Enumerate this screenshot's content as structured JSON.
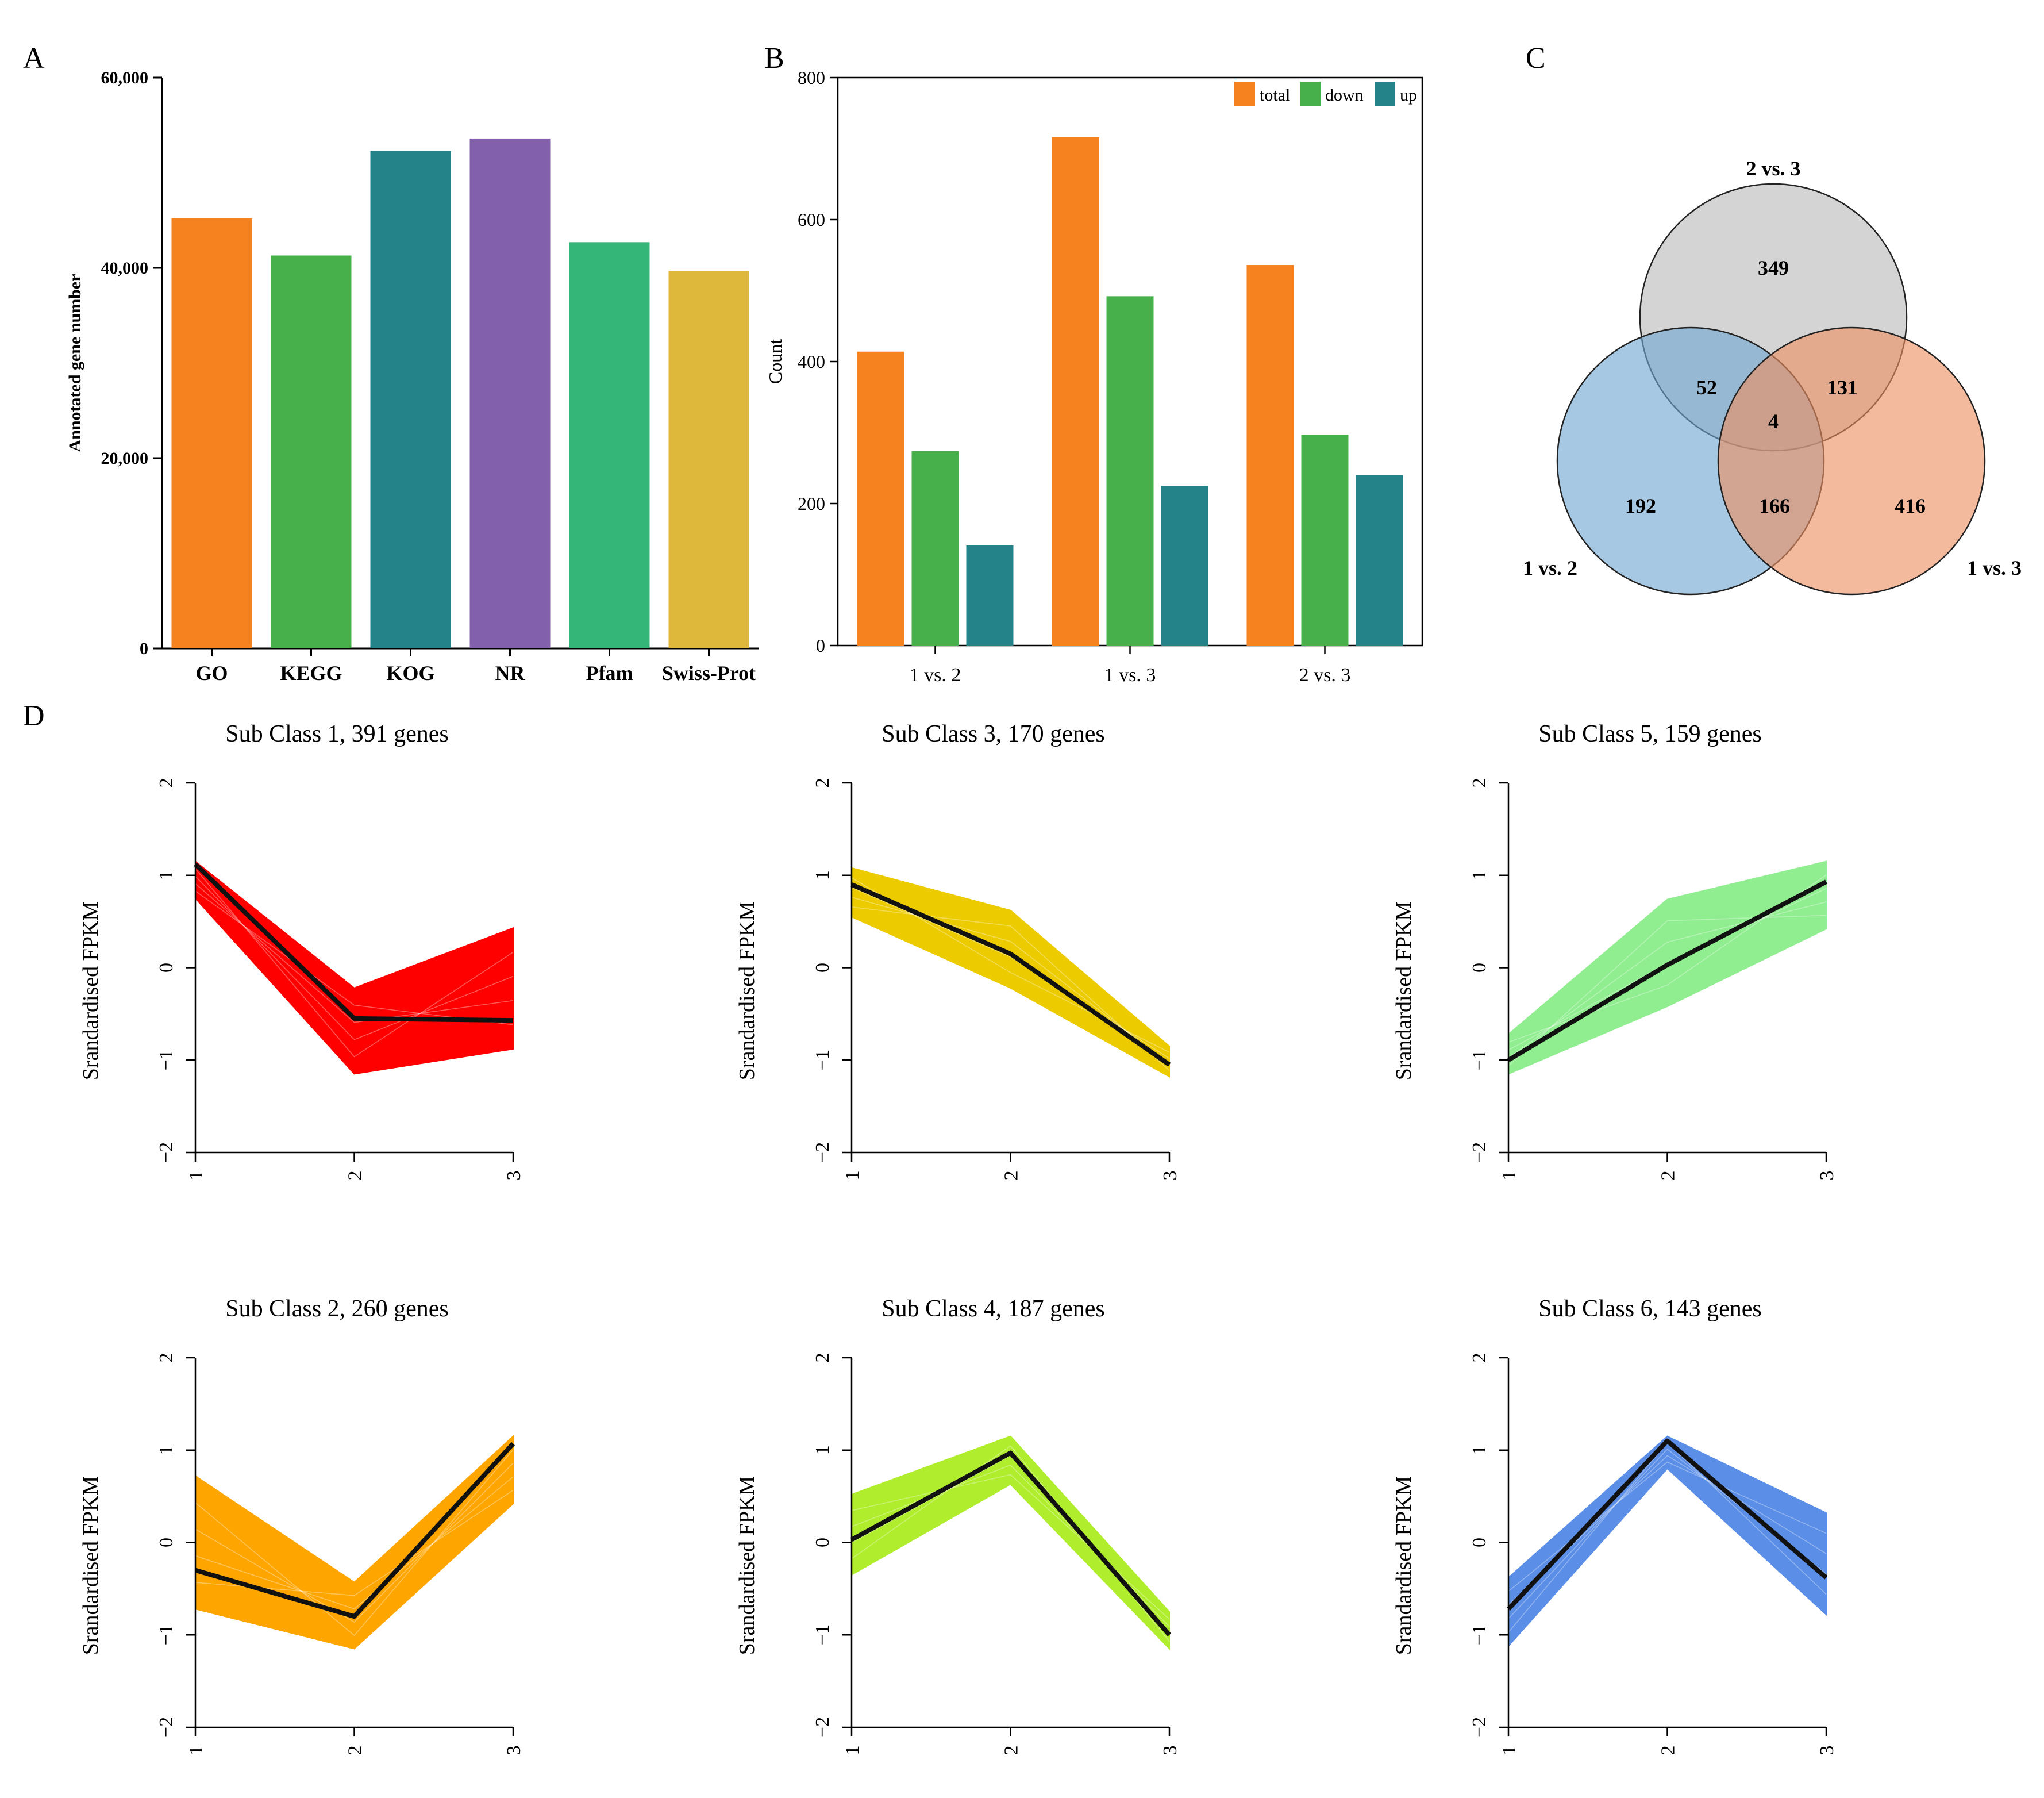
{
  "panels": {
    "a": "A",
    "b": "B",
    "c": "C",
    "d": "D"
  },
  "chart_data": [
    {
      "id": "A",
      "type": "bar",
      "xlabel": "",
      "ylabel": "Annotated gene number",
      "ylim": [
        0,
        60000
      ],
      "yticks": [
        0,
        20000,
        40000,
        60000
      ],
      "ytick_labels": [
        "0",
        "20,000",
        "40,000",
        "60,000"
      ],
      "categories": [
        "GO",
        "KEGG",
        "KOG",
        "NR",
        "Pfam",
        "Swiss-Prot"
      ],
      "values": [
        45200,
        41300,
        52300,
        53600,
        42700,
        39700
      ],
      "colors": [
        "#f5821f",
        "#47b04b",
        "#238389",
        "#8360ab",
        "#35b679",
        "#ddb83a"
      ]
    },
    {
      "id": "B",
      "type": "bar",
      "xlabel": "",
      "ylabel": "Count",
      "ylim": [
        0,
        800
      ],
      "yticks": [
        0,
        200,
        400,
        600,
        800
      ],
      "ytick_labels": [
        "0",
        "200",
        "400",
        "600",
        "800"
      ],
      "categories": [
        "1 vs. 2",
        "1 vs. 3",
        "2 vs. 3"
      ],
      "series": [
        {
          "name": "total",
          "color": "#f5821f",
          "values": [
            414,
            716,
            536
          ]
        },
        {
          "name": "down",
          "color": "#47b04b",
          "values": [
            274,
            492,
            297
          ]
        },
        {
          "name": "up",
          "color": "#238389",
          "values": [
            141,
            225,
            240
          ]
        }
      ],
      "legend": "top-right"
    },
    {
      "id": "C",
      "type": "venn",
      "sets": [
        {
          "name": "2 vs. 3",
          "color": "#b9b9b9"
        },
        {
          "name": "1 vs. 2",
          "color": "#6fa7d1"
        },
        {
          "name": "1 vs. 3",
          "color": "#ee8f63"
        }
      ],
      "regions": [
        {
          "key": "only_2v3",
          "value": 349
        },
        {
          "key": "1v2_2v3",
          "value": 52
        },
        {
          "key": "2v3_1v3",
          "value": 131
        },
        {
          "key": "all",
          "value": 4
        },
        {
          "key": "only_1v2",
          "value": 192
        },
        {
          "key": "1v2_1v3",
          "value": 166
        },
        {
          "key": "only_1v3",
          "value": 416
        }
      ]
    },
    {
      "id": "D",
      "type": "line",
      "ylabel": "Srandardised FPKM",
      "x": [
        1,
        2,
        3
      ],
      "xtick_labels": [
        "1",
        "2",
        "3"
      ],
      "ylim": [
        -2,
        2
      ],
      "yticks": [
        -2,
        -1,
        0,
        1,
        2
      ],
      "ytick_labels": [
        "−2",
        "−1",
        "0",
        "1",
        "2"
      ],
      "subplots": [
        {
          "title": "Sub Class  1, 391 genes",
          "color": "#ff0000",
          "mean": [
            1.12,
            -0.55,
            -0.57
          ],
          "band_upper": [
            1.15,
            -0.22,
            0.43
          ],
          "band_lower": [
            0.75,
            -1.15,
            -0.88
          ],
          "row": 0,
          "col": 0
        },
        {
          "title": "Sub Class  3, 170 genes",
          "color": "#eccb00",
          "mean": [
            0.9,
            0.15,
            -1.05
          ],
          "band_upper": [
            1.08,
            0.62,
            -0.85
          ],
          "band_lower": [
            0.55,
            -0.22,
            -1.18
          ],
          "row": 0,
          "col": 1
        },
        {
          "title": "Sub Class  5, 159 genes",
          "color": "#90ee90",
          "mean": [
            -1.0,
            0.03,
            0.93
          ],
          "band_upper": [
            -0.72,
            0.74,
            1.15
          ],
          "band_lower": [
            -1.15,
            -0.42,
            0.42
          ],
          "row": 0,
          "col": 2
        },
        {
          "title": "Sub Class  2, 260 genes",
          "color": "#ffa500",
          "mean": [
            -0.3,
            -0.8,
            1.07
          ],
          "band_upper": [
            0.72,
            -0.43,
            1.15
          ],
          "band_lower": [
            -0.72,
            -1.15,
            0.42
          ],
          "row": 1,
          "col": 0
        },
        {
          "title": "Sub Class  4, 187 genes",
          "color": "#b0ed2d",
          "mean": [
            0.03,
            0.97,
            -1.0
          ],
          "band_upper": [
            0.52,
            1.15,
            -0.75
          ],
          "band_lower": [
            -0.35,
            0.63,
            -1.15
          ],
          "row": 1,
          "col": 1
        },
        {
          "title": "Sub Class  6, 143 genes",
          "color": "#5b8ee6",
          "mean": [
            -0.72,
            1.1,
            -0.38
          ],
          "band_upper": [
            -0.38,
            1.15,
            0.32
          ],
          "band_lower": [
            -1.12,
            0.8,
            -0.78
          ],
          "row": 1,
          "col": 2
        }
      ]
    }
  ]
}
